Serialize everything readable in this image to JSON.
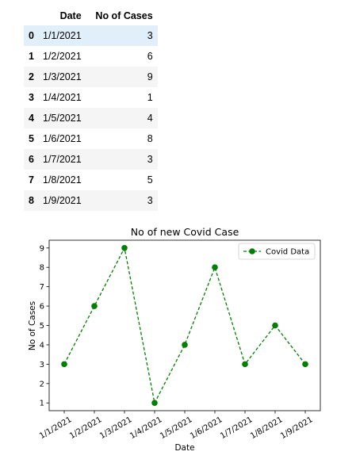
{
  "table": {
    "columns": [
      "Date",
      "No of Cases"
    ],
    "rows": [
      {
        "index": "0",
        "date": "1/1/2021",
        "cases": "3"
      },
      {
        "index": "1",
        "date": "1/2/2021",
        "cases": "6"
      },
      {
        "index": "2",
        "date": "1/3/2021",
        "cases": "9"
      },
      {
        "index": "3",
        "date": "1/4/2021",
        "cases": "1"
      },
      {
        "index": "4",
        "date": "1/5/2021",
        "cases": "4"
      },
      {
        "index": "5",
        "date": "1/6/2021",
        "cases": "8"
      },
      {
        "index": "6",
        "date": "1/7/2021",
        "cases": "3"
      },
      {
        "index": "7",
        "date": "1/8/2021",
        "cases": "5"
      },
      {
        "index": "8",
        "date": "1/9/2021",
        "cases": "3"
      }
    ]
  },
  "chart_data": {
    "type": "line",
    "title": "No of new Covid Case",
    "xlabel": "Date",
    "ylabel": "No of Cases",
    "categories": [
      "1/1/2021",
      "1/2/2021",
      "1/3/2021",
      "1/4/2021",
      "1/5/2021",
      "1/6/2021",
      "1/7/2021",
      "1/8/2021",
      "1/9/2021"
    ],
    "series": [
      {
        "name": "Covid Data",
        "values": [
          3,
          6,
          9,
          1,
          4,
          8,
          3,
          5,
          3
        ],
        "color": "#008000",
        "line_style": "dashed",
        "marker": "circle"
      }
    ],
    "yticks": [
      1,
      2,
      3,
      4,
      5,
      6,
      7,
      8,
      9
    ],
    "ylim": [
      0.6,
      9.4
    ],
    "grid": false,
    "legend": "top-right"
  }
}
